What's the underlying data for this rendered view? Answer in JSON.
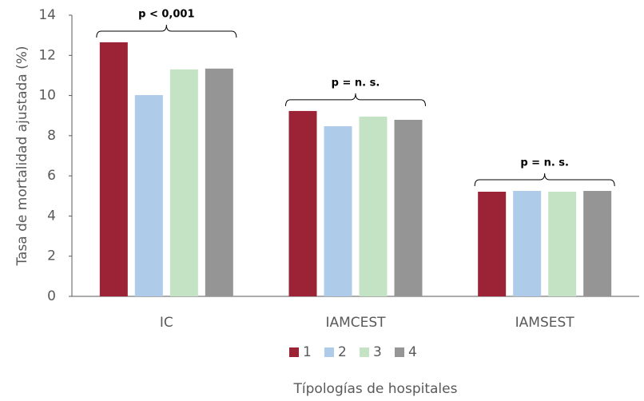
{
  "chart_data": {
    "type": "bar",
    "x_label": "Típologías de hospitales",
    "y_label": "Tasa de mortalidad ajustada (%)",
    "categories": [
      "IC",
      "IAMCEST",
      "IAMSEST"
    ],
    "series": [
      {
        "name": "1",
        "color": "#9b2335",
        "values": [
          12.65,
          9.23,
          5.21
        ]
      },
      {
        "name": "2",
        "color": "#aecbea",
        "values": [
          10.02,
          8.47,
          5.25
        ]
      },
      {
        "name": "3",
        "color": "#c4e3c4",
        "values": [
          11.3,
          8.95,
          5.21
        ]
      },
      {
        "name": "4",
        "color": "#959595",
        "values": [
          11.34,
          8.79,
          5.25
        ]
      }
    ],
    "annotations": [
      "p < 0,001",
      "p = n. s.",
      "p = n. s."
    ],
    "ylim": [
      0,
      14
    ],
    "yticks": [
      0,
      2,
      4,
      6,
      8,
      10,
      12,
      14
    ],
    "grid": false,
    "legend": "bottom"
  }
}
